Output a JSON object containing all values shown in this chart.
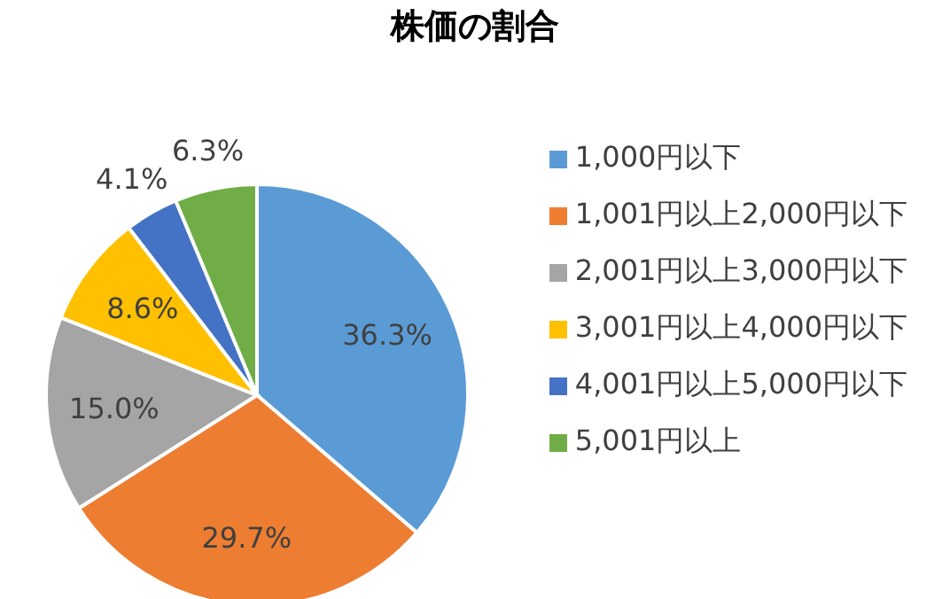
{
  "chart_data": {
    "type": "pie",
    "title": "株価の割合",
    "categories": [
      "1,000円以下",
      "1,001円以上2,000円以下",
      "2,001円以上3,000円以下",
      "3,001円以上4,000円以下",
      "4,001円以上5,000円以下",
      "5,001円以上"
    ],
    "values": [
      36.3,
      29.7,
      15.0,
      8.6,
      4.1,
      6.3
    ],
    "colors": [
      "#5b9bd5",
      "#ed7d31",
      "#a5a5a5",
      "#ffc000",
      "#4472c4",
      "#70ad47"
    ],
    "value_labels": [
      "36.3%",
      "29.7%",
      "15.0%",
      "8.6%",
      "4.1%",
      "6.3%"
    ],
    "legend": "right"
  }
}
